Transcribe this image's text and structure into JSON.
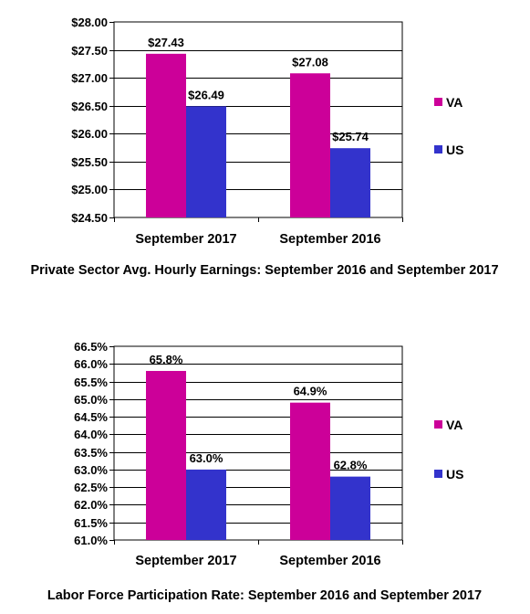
{
  "chart_data": [
    {
      "type": "bar",
      "title": "Private Sector Avg. Hourly Earnings:  September 2016 and September 2017",
      "categories": [
        "September 2017",
        "September 2016"
      ],
      "series": [
        {
          "name": "VA",
          "values": [
            27.43,
            27.08
          ],
          "labels": [
            "$27.43",
            "$27.08"
          ],
          "color": "#cc0099"
        },
        {
          "name": "US",
          "values": [
            26.49,
            25.74
          ],
          "labels": [
            "$26.49",
            "$25.74"
          ],
          "color": "#3333cc"
        }
      ],
      "ylim": [
        24.5,
        28.0
      ],
      "yticks": [
        24.5,
        25.0,
        25.5,
        26.0,
        26.5,
        27.0,
        27.5,
        28.0
      ],
      "ytick_labels": [
        "$24.50",
        "$25.00",
        "$25.50",
        "$26.00",
        "$26.50",
        "$27.00",
        "$27.50",
        "$28.00"
      ],
      "grid": true,
      "legend": "right"
    },
    {
      "type": "bar",
      "title": "Labor Force Participation Rate:  September 2016 and September 2017",
      "categories": [
        "September 2017",
        "September 2016"
      ],
      "series": [
        {
          "name": "VA",
          "values": [
            65.8,
            64.9
          ],
          "labels": [
            "65.8%",
            "64.9%"
          ],
          "color": "#cc0099"
        },
        {
          "name": "US",
          "values": [
            63.0,
            62.8
          ],
          "labels": [
            "63.0%",
            "62.8%"
          ],
          "color": "#3333cc"
        }
      ],
      "ylim": [
        61.0,
        66.5
      ],
      "yticks": [
        61.0,
        61.5,
        62.0,
        62.5,
        63.0,
        63.5,
        64.0,
        64.5,
        65.0,
        65.5,
        66.0,
        66.5
      ],
      "ytick_labels": [
        "61.0%",
        "61.5%",
        "62.0%",
        "62.5%",
        "63.0%",
        "63.5%",
        "64.0%",
        "64.5%",
        "65.0%",
        "65.5%",
        "66.0%",
        "66.5%"
      ],
      "grid": true,
      "legend": "right"
    }
  ]
}
